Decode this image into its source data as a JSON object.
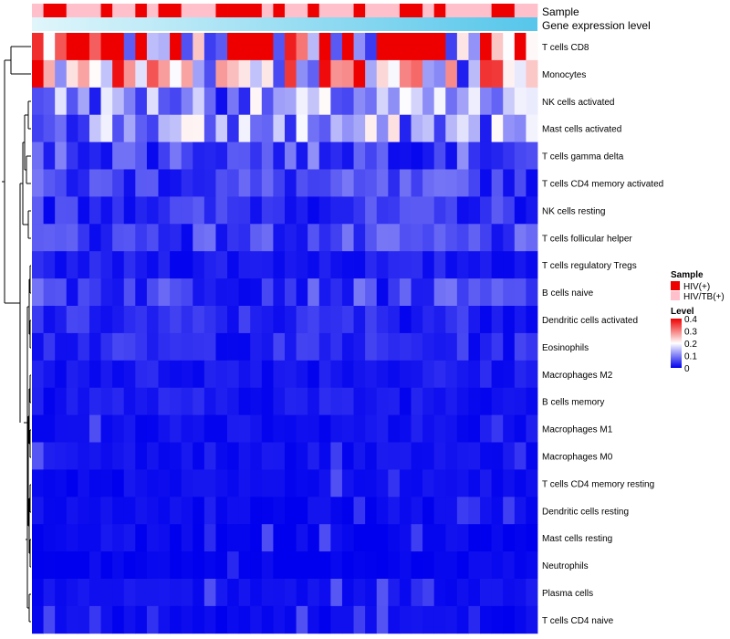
{
  "chart_data": {
    "type": "heatmap",
    "title": "",
    "annotation_tracks": [
      {
        "name": "Sample",
        "label": "Sample"
      },
      {
        "name": "Gene expression level",
        "label": "Gene expression level"
      }
    ],
    "rows": [
      "T cells CD8",
      "Monocytes",
      "NK cells activated",
      "Mast cells activated",
      "T cells gamma delta",
      "T cells CD4 memory activated",
      "NK cells resting",
      "T cells follicular helper",
      "T cells regulatory  Tregs",
      "B cells naive",
      "Dendritic cells activated",
      "Eosinophils",
      "Macrophages M2",
      "B cells memory",
      "Macrophages M1",
      "Macrophages M0",
      "T cells CD4 memory resting",
      "Dendritic cells resting",
      "Mast cells resting",
      "Neutrophils",
      "Plasma cells",
      "T cells CD4 naive"
    ],
    "n_columns": 44,
    "sample_groups": [
      1,
      0,
      0,
      1,
      1,
      1,
      0,
      1,
      1,
      0,
      1,
      0,
      0,
      1,
      1,
      1,
      0,
      0,
      0,
      0,
      1,
      0,
      1,
      1,
      0,
      1,
      1,
      1,
      0,
      1,
      1,
      1,
      0,
      0,
      1,
      0,
      1,
      1,
      1,
      1,
      0,
      0,
      1,
      1
    ],
    "row_means": [
      0.31,
      0.24,
      0.11,
      0.12,
      0.06,
      0.05,
      0.04,
      0.05,
      0.02,
      0.05,
      0.03,
      0.03,
      0.02,
      0.02,
      0.015,
      0.012,
      0.008,
      0.008,
      0.004,
      0.002,
      0.012,
      0.008
    ],
    "legend": {
      "sample": {
        "title": "Sample",
        "entries": [
          {
            "label": "HIV(+)",
            "color": "#ee0000"
          },
          {
            "label": "HIV/TB(+)",
            "color": "#ffc0cb"
          }
        ]
      },
      "level": {
        "title": "Level",
        "range": [
          0,
          0.4
        ],
        "ticks": [
          "0.4",
          "0.3",
          "0.2",
          "0.1",
          "0"
        ],
        "low_color": "#0000ee",
        "mid_color": "#ffffff",
        "high_color": "#ee0000"
      }
    },
    "gradient_colors": {
      "low": "#e0f6fb",
      "high": "#56c6ea"
    }
  }
}
